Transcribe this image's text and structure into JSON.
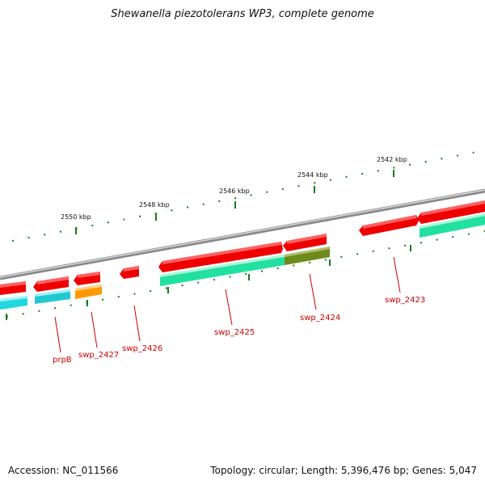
{
  "title": "Shewanella piezotolerans WP3, complete genome",
  "footer": {
    "accession": "Accession: NC_011566",
    "topology": "Topology: circular; Length: 5,396,476 bp; Genes: 5,047"
  },
  "scale_labels": [
    "2550 kbp",
    "2548 kbp",
    "2546 kbp",
    "2544 kbp",
    "2542 kbp"
  ],
  "gene_labels": [
    "prpB",
    "swp_2427",
    "swp_2426",
    "swp_2425",
    "swp_2424",
    "swp_2423"
  ],
  "colors": {
    "backbone": "#8a8a8a",
    "forward_gene": "#ee0000",
    "cds_green": "#22e0a0",
    "cds_cyan": "#22d8e0",
    "cds_orange": "#ff9900",
    "cds_olive": "#6f8a1c",
    "tick": "#1a7a1a",
    "label": "#cc0000"
  }
}
